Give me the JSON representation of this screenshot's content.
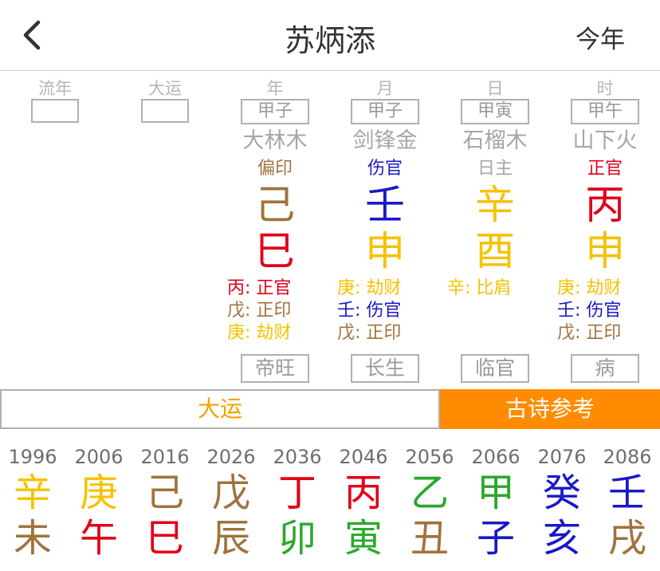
{
  "nav": {
    "title": "苏炳添",
    "right": "今年"
  },
  "colors": {
    "wood": "#f5c200",
    "metal": "#f5c200",
    "fire": "#e0001a",
    "earth": "#a0733d",
    "water": "#1818c8",
    "green": "#2aa82a",
    "accent": "#ff8c00"
  },
  "columns": [
    {
      "header": "流年",
      "pillar": ""
    },
    {
      "header": "大运",
      "pillar": ""
    },
    {
      "header": "年",
      "pillar": "甲子",
      "nayin": "大林木",
      "shishen": "偏印",
      "stem": "己",
      "branch": "巳",
      "hidden": [
        "丙: 正官",
        "戊: 正印",
        "庚: 劫财"
      ],
      "phase": "帝旺"
    },
    {
      "header": "月",
      "pillar": "甲子",
      "nayin": "剑锋金",
      "shishen": "伤官",
      "stem": "壬",
      "branch": "申",
      "hidden": [
        "庚: 劫财",
        "壬: 伤官",
        "戊: 正印"
      ],
      "phase": "长生"
    },
    {
      "header": "日",
      "pillar": "甲寅",
      "nayin": "石榴木",
      "shishen": "日主",
      "stem": "辛",
      "branch": "酉",
      "hidden": [
        "辛: 比肩"
      ],
      "phase": "临官"
    },
    {
      "header": "时",
      "pillar": "甲午",
      "nayin": "山下火",
      "shishen": "正官",
      "stem": "丙",
      "branch": "申",
      "hidden": [
        "庚: 劫财",
        "壬: 伤官",
        "戊: 正印"
      ],
      "phase": "病"
    }
  ],
  "tabs": {
    "dayun": "大运",
    "gushi": "古诗参考"
  },
  "dayun": [
    {
      "year": "1996",
      "stem": "辛",
      "branch": "未"
    },
    {
      "year": "2006",
      "stem": "庚",
      "branch": "午"
    },
    {
      "year": "2016",
      "stem": "己",
      "branch": "巳"
    },
    {
      "year": "2026",
      "stem": "戊",
      "branch": "辰"
    },
    {
      "year": "2036",
      "stem": "丁",
      "branch": "卯"
    },
    {
      "year": "2046",
      "stem": "丙",
      "branch": "寅"
    },
    {
      "year": "2056",
      "stem": "乙",
      "branch": "丑"
    },
    {
      "year": "2066",
      "stem": "甲",
      "branch": "子"
    },
    {
      "year": "2076",
      "stem": "癸",
      "branch": "亥"
    },
    {
      "year": "2086",
      "stem": "壬",
      "branch": "戌"
    }
  ]
}
